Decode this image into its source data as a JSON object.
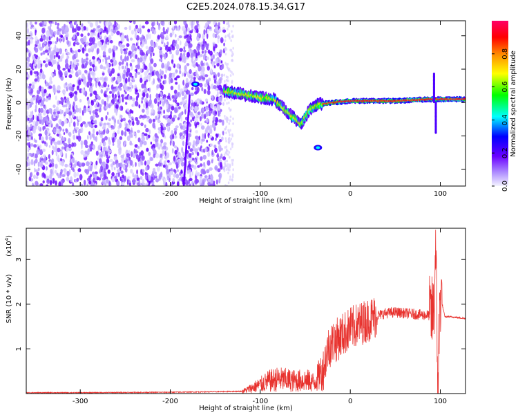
{
  "title": "C2E5.2024.078.15.34.G17",
  "chart_data": [
    {
      "type": "heatmap",
      "xlabel": "Height of straight line (km)",
      "ylabel": "Frequency (Hz)",
      "xlim": [
        -360,
        128
      ],
      "ylim": [
        -50,
        49
      ],
      "xticks": [
        -300,
        -200,
        -100,
        0,
        100
      ],
      "yticks": [
        -40,
        -20,
        0,
        20,
        40
      ],
      "colorbar": {
        "label": "Normalized spectral amplitude",
        "range": [
          0.0,
          1.0
        ],
        "ticks": [
          0.0,
          0.2,
          0.4,
          0.6,
          0.8
        ],
        "colormap": [
          "#f2f2ff",
          "#b090ff",
          "#6600ff",
          "#0000ff",
          "#00ffff",
          "#00ff00",
          "#ffff00",
          "#ff8800",
          "#ff0000",
          "#ff0066"
        ]
      },
      "noise_region": {
        "x": [
          -360,
          -140
        ],
        "y": [
          -50,
          49
        ],
        "level": 0.2
      },
      "ridge": [
        {
          "x": -140,
          "y": 7
        },
        {
          "x": -120,
          "y": 5
        },
        {
          "x": -100,
          "y": 3
        },
        {
          "x": -85,
          "y": 2
        },
        {
          "x": -75,
          "y": -3
        },
        {
          "x": -65,
          "y": -8
        },
        {
          "x": -55,
          "y": -13
        },
        {
          "x": -45,
          "y": -4
        },
        {
          "x": -35,
          "y": -1
        },
        {
          "x": -20,
          "y": 0
        },
        {
          "x": 0,
          "y": 1
        },
        {
          "x": 50,
          "y": 1
        },
        {
          "x": 90,
          "y": 2
        },
        {
          "x": 128,
          "y": 2
        }
      ],
      "features": [
        {
          "x": -172,
          "y": 11,
          "note": "patch"
        },
        {
          "x": -185,
          "y": -25,
          "note": "vertical streak"
        },
        {
          "x": 93,
          "y": 14,
          "note": "spike"
        },
        {
          "x": -36,
          "y": -27,
          "note": "blob"
        }
      ]
    },
    {
      "type": "line",
      "xlabel": "Height of straight line (km)",
      "ylabel": "SNR (10 * v/v)",
      "yscale_label": "(x10",
      "yscale_exp": "4",
      "yscale_close": ")",
      "xlim": [
        -360,
        128
      ],
      "ylim": [
        0,
        3.7
      ],
      "xticks": [
        -300,
        -200,
        -100,
        0,
        100
      ],
      "yticks": [
        1,
        2,
        3
      ],
      "series": [
        {
          "color": "#e8322e",
          "x": [
            -360,
            -300,
            -200,
            -150,
            -120,
            -110,
            -100,
            -90,
            -80,
            -70,
            -60,
            -50,
            -40,
            -30,
            -25,
            -20,
            -15,
            -10,
            0,
            10,
            20,
            30,
            40,
            50,
            60,
            70,
            80,
            90,
            93,
            95,
            97,
            100,
            105,
            110,
            120,
            128
          ],
          "y": [
            0.02,
            0.02,
            0.03,
            0.04,
            0.05,
            0.12,
            0.2,
            0.28,
            0.32,
            0.3,
            0.28,
            0.3,
            0.25,
            0.55,
            1.0,
            1.15,
            1.2,
            1.3,
            1.45,
            1.55,
            1.65,
            1.75,
            1.8,
            1.82,
            1.8,
            1.78,
            1.76,
            1.75,
            1.8,
            3.6,
            0.1,
            2.2,
            1.72,
            1.72,
            1.7,
            1.68
          ]
        }
      ]
    }
  ]
}
